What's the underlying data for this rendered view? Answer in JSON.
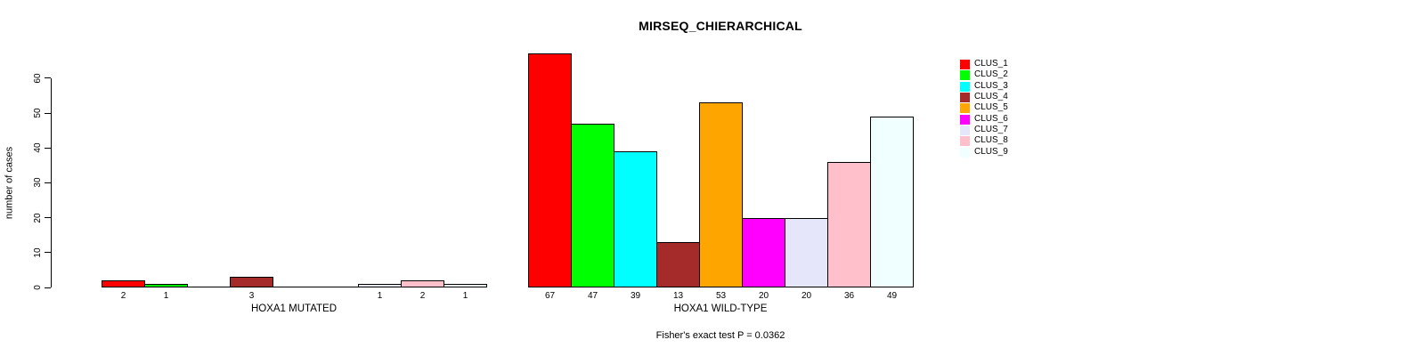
{
  "title": "MIRSEQ_CHIERARCHICAL",
  "footnote": "Fisher's exact test P = 0.0362",
  "chart_data": {
    "type": "bar",
    "title": "MIRSEQ_CHIERARCHICAL",
    "xlabel": "",
    "ylabel": "number of cases",
    "ylim": [
      0,
      60
    ],
    "yticks": [
      0,
      10,
      20,
      30,
      40,
      50,
      60
    ],
    "grid": false,
    "legend_position": "top-right",
    "legend_has_border": false,
    "bar_border_color": "#000000",
    "series": [
      {
        "name": "CLUS_1",
        "color": "#FF0000",
        "values": [
          2,
          67
        ]
      },
      {
        "name": "CLUS_2",
        "color": "#00FF00",
        "values": [
          1,
          47
        ]
      },
      {
        "name": "CLUS_3",
        "color": "#00FFFF",
        "values": [
          0,
          39
        ]
      },
      {
        "name": "CLUS_4",
        "color": "#A52A2A",
        "values": [
          3,
          13
        ]
      },
      {
        "name": "CLUS_5",
        "color": "#FFA500",
        "values": [
          0,
          53
        ]
      },
      {
        "name": "CLUS_6",
        "color": "#FF00FF",
        "values": [
          0,
          20
        ]
      },
      {
        "name": "CLUS_7",
        "color": "#E6E6FA",
        "values": [
          1,
          20
        ]
      },
      {
        "name": "CLUS_8",
        "color": "#FFC0CB",
        "values": [
          2,
          36
        ]
      },
      {
        "name": "CLUS_9",
        "color": "#F0FFFF",
        "values": [
          1,
          49
        ]
      }
    ],
    "categories": [
      "HOXA1 MUTATED",
      "HOXA1 WILD-TYPE"
    ],
    "bar_value_labels": {
      "HOXA1 MUTATED": [
        2,
        1,
        null,
        3,
        null,
        null,
        1,
        2,
        1
      ],
      "HOXA1 WILD-TYPE": [
        67,
        47,
        39,
        13,
        53,
        20,
        20,
        36,
        49
      ]
    },
    "annotation": "Fisher's exact test P = 0.0362"
  }
}
